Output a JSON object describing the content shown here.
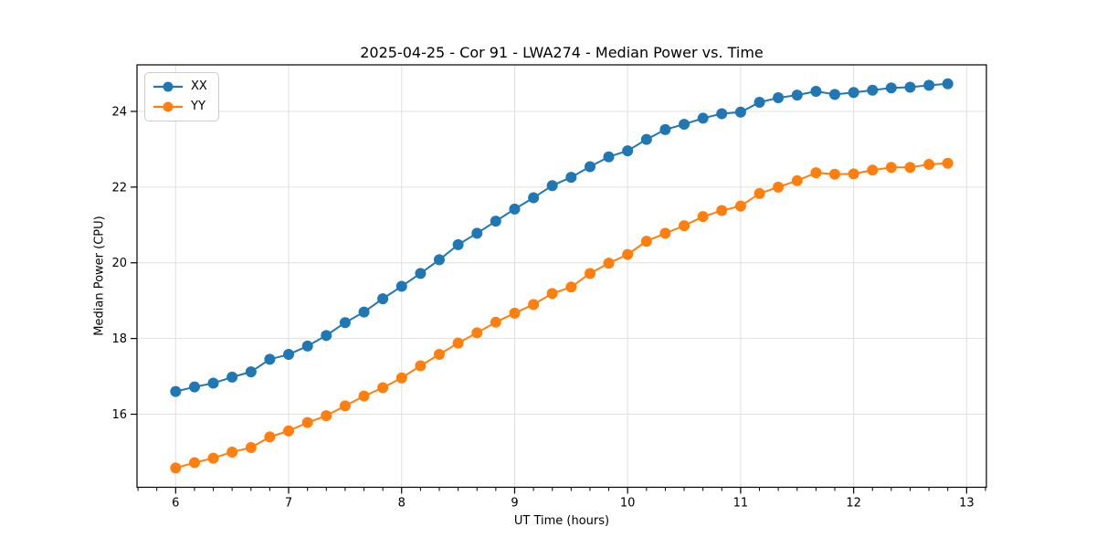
{
  "figure": {
    "background": "#ffffff"
  },
  "chart_data": {
    "type": "line",
    "title": "2025-04-25 - Cor 91 - LWA274 - Median Power vs. Time",
    "xlabel": "UT Time (hours)",
    "ylabel": "Median Power (CPU)",
    "x": [
      6.0,
      6.167,
      6.333,
      6.5,
      6.667,
      6.833,
      7.0,
      7.167,
      7.333,
      7.5,
      7.667,
      7.833,
      8.0,
      8.167,
      8.333,
      8.5,
      8.667,
      8.833,
      9.0,
      9.167,
      9.333,
      9.5,
      9.667,
      9.833,
      10.0,
      10.167,
      10.333,
      10.5,
      10.667,
      10.833,
      11.0,
      11.167,
      11.333,
      11.5,
      11.667,
      11.833,
      12.0,
      12.167,
      12.333,
      12.5,
      12.667,
      12.833
    ],
    "series": [
      {
        "name": "XX",
        "color": "#1f77b4",
        "values": [
          16.6,
          16.72,
          16.82,
          16.98,
          17.12,
          17.45,
          17.58,
          17.8,
          18.08,
          18.42,
          18.7,
          19.05,
          19.38,
          19.72,
          20.08,
          20.48,
          20.78,
          21.1,
          21.42,
          21.72,
          22.04,
          22.26,
          22.54,
          22.8,
          22.96,
          23.26,
          23.52,
          23.66,
          23.82,
          23.94,
          23.98,
          24.24,
          24.36,
          24.43,
          24.53,
          24.45,
          24.5,
          24.56,
          24.62,
          24.64,
          24.69,
          24.73
        ]
      },
      {
        "name": "YY",
        "color": "#ff7f0e",
        "values": [
          14.58,
          14.72,
          14.84,
          15.0,
          15.12,
          15.4,
          15.56,
          15.78,
          15.96,
          16.22,
          16.48,
          16.7,
          16.96,
          17.28,
          17.58,
          17.88,
          18.15,
          18.43,
          18.67,
          18.9,
          19.19,
          19.36,
          19.72,
          19.99,
          20.22,
          20.57,
          20.78,
          20.98,
          21.22,
          21.38,
          21.5,
          21.83,
          22.0,
          22.17,
          22.38,
          22.34,
          22.35,
          22.45,
          22.52,
          22.52,
          22.6,
          22.63
        ]
      }
    ],
    "xlim": [
      5.658,
      13.175
    ],
    "ylim": [
      14.07,
      25.23
    ],
    "xticks": [
      6,
      7,
      8,
      9,
      10,
      11,
      12,
      13
    ],
    "yticks": [
      16,
      18,
      20,
      22,
      24
    ],
    "x_minor_ticks_per_major": 6,
    "grid": true,
    "legend_position": "upper left",
    "marker": "circle",
    "colors": {
      "grid": "#e0e0e0",
      "spine": "#000000",
      "tick_text": "#000000"
    }
  }
}
